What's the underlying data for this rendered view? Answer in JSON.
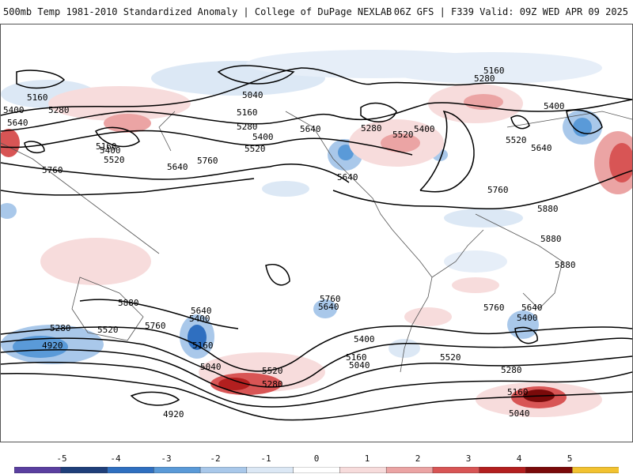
{
  "header": {
    "title": "500mb Temp 1981-2010 Standardized Anomaly | College of DuPage NEXLAB",
    "run_info": "06Z GFS | F339 Valid: 09Z WED APR 09 2025"
  },
  "contour_labels": [
    "5160",
    "5400",
    "5280",
    "5640",
    "5160",
    "5400",
    "5520",
    "5760",
    "5040",
    "5160",
    "5280",
    "5400",
    "5520",
    "5640",
    "5760",
    "5640",
    "5280",
    "5520",
    "5400",
    "5640",
    "5160",
    "5280",
    "5400",
    "5520",
    "5640",
    "5760",
    "5880",
    "5880",
    "5880",
    "5880",
    "5520",
    "5760",
    "5640",
    "5400",
    "5280",
    "4920",
    "5160",
    "5040",
    "4920",
    "5760",
    "5640",
    "5400",
    "5520",
    "5280",
    "5160",
    "5040",
    "5760",
    "5640",
    "5400",
    "5520",
    "5280",
    "5160",
    "5040"
  ],
  "colorbar": {
    "tick_labels": [
      "-5",
      "-4",
      "-3",
      "-2",
      "-1",
      "0",
      "1",
      "2",
      "3",
      "4",
      "5"
    ],
    "colors": [
      "#5a3fa0",
      "#1f3f7a",
      "#2f6fc0",
      "#5a9ad8",
      "#a9c8ea",
      "#dce8f5",
      "#ffffff",
      "#f7dcdc",
      "#eba4a4",
      "#d85555",
      "#b31f1f",
      "#7a0a0a",
      "#f2c230"
    ]
  }
}
